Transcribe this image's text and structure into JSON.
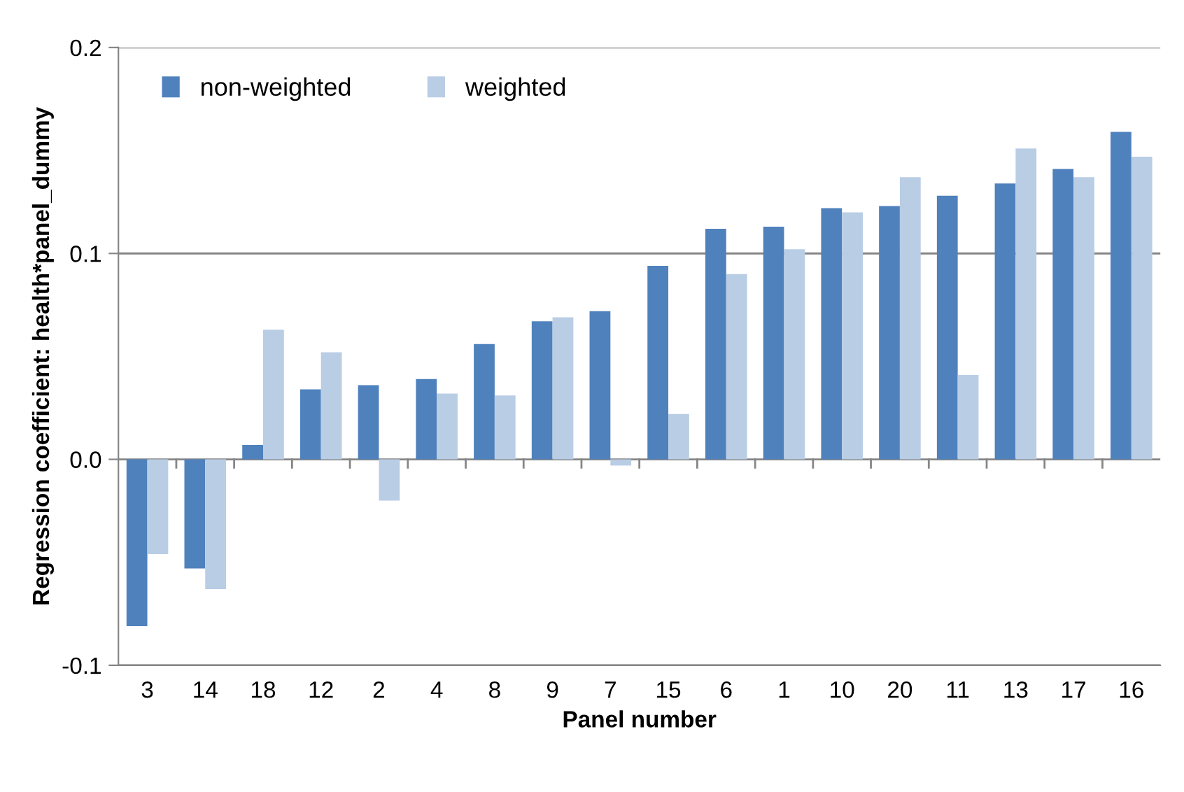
{
  "chart_data": {
    "type": "bar",
    "xlabel": "Panel number",
    "ylabel": "Regression coefficient: health*panel_dummy",
    "categories": [
      "3",
      "14",
      "18",
      "12",
      "2",
      "4",
      "8",
      "9",
      "7",
      "15",
      "6",
      "1",
      "10",
      "20",
      "11",
      "13",
      "17",
      "16"
    ],
    "series": [
      {
        "name": "non-weighted",
        "color": "#4f81bd",
        "values": [
          -0.081,
          -0.053,
          0.007,
          0.034,
          0.036,
          0.039,
          0.056,
          0.067,
          0.072,
          0.094,
          0.112,
          0.113,
          0.122,
          0.123,
          0.128,
          0.134,
          0.141,
          0.159
        ]
      },
      {
        "name": "weighted",
        "color": "#b9cde5",
        "values": [
          -0.046,
          -0.063,
          0.063,
          0.052,
          -0.02,
          0.032,
          0.031,
          0.069,
          -0.003,
          0.022,
          0.09,
          0.102,
          0.12,
          0.137,
          0.041,
          0.151,
          0.137,
          0.147
        ]
      }
    ],
    "ylim": [
      -0.1,
      0.2
    ],
    "yticks": [
      {
        "value": -0.1,
        "label": "-0.1"
      },
      {
        "value": 0.0,
        "label": "0.0"
      },
      {
        "value": 0.1,
        "label": "0.1"
      },
      {
        "value": 0.2,
        "label": "0.2"
      }
    ],
    "grid": "y",
    "legend": "top left"
  }
}
